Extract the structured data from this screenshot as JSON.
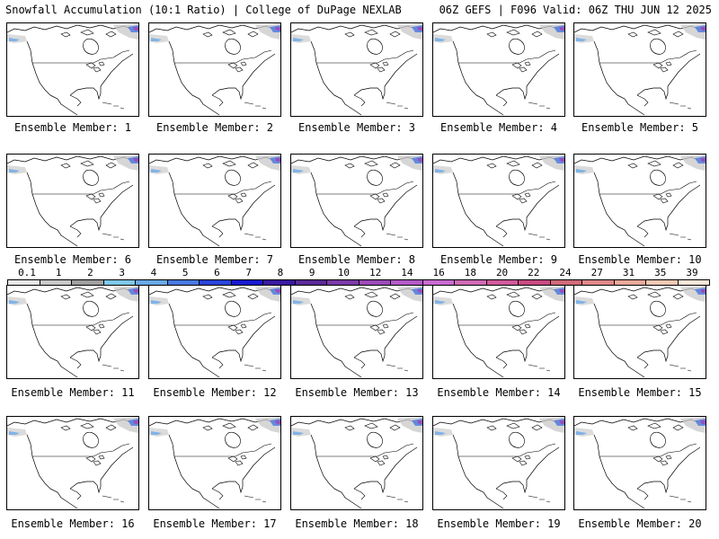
{
  "header": {
    "left": "Snowfall Accumulation (10:1 Ratio) | College of DuPage NEXLAB",
    "right": "06Z GEFS | F096 Valid: 06Z THU JUN 12 2025"
  },
  "members": [
    "Ensemble Member: 1",
    "Ensemble Member: 2",
    "Ensemble Member: 3",
    "Ensemble Member: 4",
    "Ensemble Member: 5",
    "Ensemble Member: 6",
    "Ensemble Member: 7",
    "Ensemble Member: 8",
    "Ensemble Member: 9",
    "Ensemble Member: 10",
    "Ensemble Member: 11",
    "Ensemble Member: 12",
    "Ensemble Member: 13",
    "Ensemble Member: 14",
    "Ensemble Member: 15",
    "Ensemble Member: 16",
    "Ensemble Member: 17",
    "Ensemble Member: 18",
    "Ensemble Member: 19",
    "Ensemble Member: 20"
  ],
  "colorbar": {
    "labels": [
      "0.1",
      "1",
      "2",
      "3",
      "4",
      "5",
      "6",
      "7",
      "8",
      "9",
      "10",
      "12",
      "14",
      "16",
      "18",
      "20",
      "22",
      "24",
      "27",
      "31",
      "35",
      "39"
    ],
    "colors": [
      "#e6e6e6",
      "#c8c8c8",
      "#a0a0a0",
      "#7ec8e8",
      "#6aa8e8",
      "#4a78e0",
      "#2a44d8",
      "#1a1ad0",
      "#3a1aa0",
      "#5a2a98",
      "#7a3aa8",
      "#9a4ab8",
      "#b45ac8",
      "#c86ad0",
      "#d06ab4",
      "#d05a9a",
      "#c84a80",
      "#d06a78",
      "#e0888a",
      "#e8a89a",
      "#f0c8b4",
      "#f8e6d8"
    ]
  }
}
